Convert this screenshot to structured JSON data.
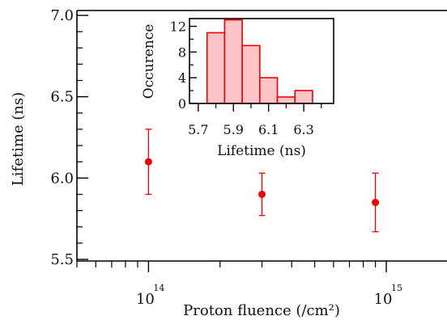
{
  "chart_data": [
    {
      "type": "scatter",
      "x_scale": "log",
      "xlabel": "Proton fluence (/cm²)",
      "ylabel": "Lifetime (ns)",
      "xlim": [
        50000000000000.0,
        1800000000000000.0
      ],
      "ylim": [
        5.49,
        7.03
      ],
      "x_tick_labels": [
        {
          "value": 100000000000000.0,
          "base": "10",
          "exp": "14"
        },
        {
          "value": 1000000000000000.0,
          "base": "10",
          "exp": "15"
        }
      ],
      "y_ticks": [
        5.5,
        6.0,
        6.5,
        7.0
      ],
      "y_tick_labels": [
        "5.5",
        "6.0",
        "6.5",
        "7.0"
      ],
      "marker_color": "#ee0000",
      "series": [
        {
          "points": [
            {
              "x": 100000000000000.0,
              "y": 6.1,
              "yerr_low": 5.9,
              "yerr_high": 6.3
            },
            {
              "x": 300000000000000.0,
              "y": 5.9,
              "yerr_low": 5.77,
              "yerr_high": 6.03
            },
            {
              "x": 900000000000000.0,
              "y": 5.85,
              "yerr_low": 5.67,
              "yerr_high": 6.03
            }
          ]
        }
      ]
    },
    {
      "type": "bar",
      "title": "",
      "xlabel": "Lifetime (ns)",
      "ylabel": "Occurence",
      "xlim": [
        5.65,
        6.47
      ],
      "ylim": [
        0,
        13.2
      ],
      "x_ticks": [
        5.7,
        5.9,
        6.1,
        6.3
      ],
      "x_tick_labels": [
        "5.7",
        "5.9",
        "6.1",
        "6.3"
      ],
      "y_ticks": [
        0,
        4,
        8,
        12
      ],
      "y_tick_labels": [
        "0",
        "4",
        "8",
        "12"
      ],
      "bin_edges": [
        5.75,
        5.85,
        5.95,
        6.05,
        6.15,
        6.25,
        6.35
      ],
      "values": [
        11,
        13,
        9,
        4,
        1,
        2
      ],
      "bar_fill": "#ffc4c8",
      "bar_stroke": "#ee0000"
    }
  ]
}
